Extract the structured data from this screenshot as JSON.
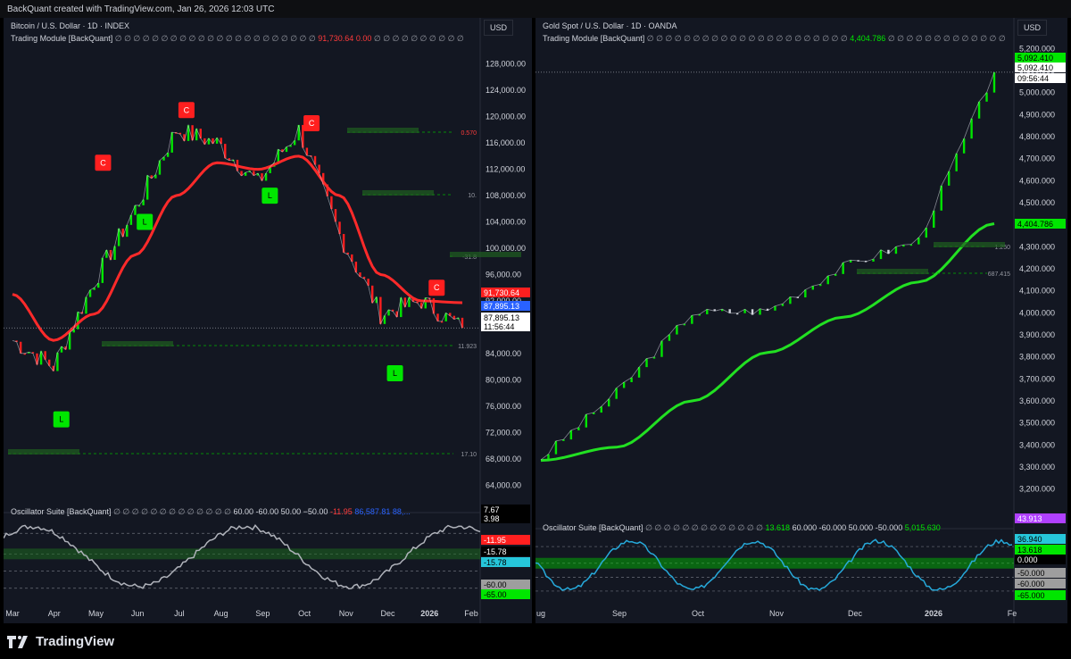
{
  "topbar": {
    "text": "BackQuant created with TradingView.com, Jan 26, 2026 12:03 UTC"
  },
  "footer": {
    "logo_text": "TradingView"
  },
  "left": {
    "title": "Bitcoin / U.S. Dollar · 1D · INDEX",
    "module_label": "Trading Module [BackQuant]",
    "module_values": [
      "91,730.64",
      "0.00"
    ],
    "currency": "USD",
    "osc_label": "Oscillator Suite [BackQuant]",
    "osc_values": [
      "60.00",
      "-60.00",
      "50.00",
      "−50.00",
      "-11.95",
      "86,587.81",
      "88,..."
    ],
    "price_badges": [
      {
        "text": "91,730.64",
        "bg": "#ff1f1f",
        "fg": "#ffffff"
      },
      {
        "text": "87,895.13",
        "bg": "#2962ff",
        "fg": "#ffffff"
      },
      {
        "text": "87,895.13",
        "bg": "#ffffff",
        "fg": "#000000"
      },
      {
        "text": "11:56:44",
        "bg": "#ffffff",
        "fg": "#000000"
      }
    ],
    "zone_labels": [
      "0.570",
      "10.",
      "-31.8",
      "11.923",
      "17.10"
    ],
    "osc_badges": [
      {
        "text": "7.67",
        "bg": "#000000",
        "fg": "#ffffff"
      },
      {
        "text": "3.98",
        "bg": "#000000",
        "fg": "#ffffff"
      },
      {
        "text": "-11.95",
        "bg": "#ff1f1f",
        "fg": "#ffffff"
      },
      {
        "text": "-15.78",
        "bg": "#000000",
        "fg": "#ffffff"
      },
      {
        "text": "-15.78",
        "bg": "#26c6da",
        "fg": "#000000"
      },
      {
        "text": "-60.00",
        "bg": "#9e9e9e",
        "fg": "#000000"
      },
      {
        "text": "-65.00",
        "bg": "#00e600",
        "fg": "#000000"
      }
    ]
  },
  "right": {
    "title": "Gold Spot / U.S. Dollar · 1D · OANDA",
    "module_label": "Trading Module [BackQuant]",
    "module_values": [
      "4,404.786"
    ],
    "currency": "USD",
    "osc_label": "Oscillator Suite [BackQuant]",
    "osc_values": [
      "13.618",
      "60.000",
      "-60.000",
      "50.000",
      "-50.000",
      "5,015.630"
    ],
    "price_badges": [
      {
        "text": "5,092.410",
        "bg": "#00e600",
        "fg": "#000000"
      },
      {
        "text": "5,092.410",
        "bg": "#ffffff",
        "fg": "#000000"
      },
      {
        "text": "09:56:44",
        "bg": "#ffffff",
        "fg": "#000000"
      },
      {
        "text": "4,404.786",
        "bg": "#00e600",
        "fg": "#000000"
      }
    ],
    "zone_labels": [
      "1.250",
      "687.415"
    ],
    "osc_badges": [
      {
        "text": "43.913",
        "bg": "#b040ff",
        "fg": "#ffffff"
      },
      {
        "text": "36.940",
        "bg": "#26c6da",
        "fg": "#000000"
      },
      {
        "text": "13.618",
        "bg": "#00e600",
        "fg": "#000000"
      },
      {
        "text": "0.000",
        "bg": "#000000",
        "fg": "#ffffff"
      },
      {
        "text": "-50.000",
        "bg": "#9e9e9e",
        "fg": "#000000"
      },
      {
        "text": "-60.000",
        "bg": "#9e9e9e",
        "fg": "#000000"
      },
      {
        "text": "-65.000",
        "bg": "#00e600",
        "fg": "#000000"
      }
    ]
  },
  "chart_data": [
    {
      "type": "line",
      "title": "Bitcoin / U.S. Dollar · 1D · INDEX",
      "xlabel": "",
      "ylabel": "USD",
      "ylim": [
        62000,
        130000
      ],
      "y_ticks": [
        "128,000.00",
        "124,000.00",
        "120,000.00",
        "116,000.00",
        "112,000.00",
        "108,000.00",
        "104,000.00",
        "100,000.00",
        "96,000.00",
        "92,000.00",
        "84,000.00",
        "80,000.00",
        "76,000.00",
        "72,000.00",
        "68,000.00",
        "64,000.00"
      ],
      "x_ticks": [
        "Mar",
        "Apr",
        "May",
        "Jun",
        "Jul",
        "Aug",
        "Sep",
        "Oct",
        "Nov",
        "Dec",
        "2026",
        "Feb"
      ],
      "series": [
        {
          "x": [
            "Mar",
            "Apr",
            "May",
            "Jun",
            "Jul",
            "Aug",
            "Sep",
            "Oct",
            "Nov",
            "Dec",
            "2026",
            "Jan 26"
          ],
          "values": [
            86000,
            82000,
            95000,
            106000,
            118000,
            116000,
            110000,
            118000,
            102000,
            90000,
            92000,
            87895.13
          ]
        },
        {
          "x": [
            "Mar",
            "Apr",
            "May",
            "Jun",
            "Jul",
            "Aug",
            "Sep",
            "Oct",
            "Nov",
            "Dec",
            "2026",
            "Jan 26"
          ],
          "values": [
            93000,
            86000,
            90000,
            99000,
            108000,
            113000,
            112000,
            114000,
            108000,
            96000,
            92000,
            91730.64
          ]
        }
      ],
      "signals": [
        {
          "label": "L",
          "x": "Apr",
          "value": 74000
        },
        {
          "label": "C",
          "x": "May",
          "value": 113000
        },
        {
          "label": "L",
          "x": "Jun",
          "value": 104000
        },
        {
          "label": "C",
          "x": "Jul",
          "value": 121000
        },
        {
          "label": "L",
          "x": "Sep",
          "value": 108000
        },
        {
          "label": "C",
          "x": "Oct",
          "value": 119000
        },
        {
          "label": "L",
          "x": "Dec",
          "value": 81000
        },
        {
          "label": "C",
          "x": "2026",
          "value": 94000
        }
      ]
    },
    {
      "type": "line",
      "title": "Gold Spot / U.S. Dollar · 1D · OANDA",
      "xlabel": "",
      "ylabel": "USD",
      "ylim": [
        3150,
        5250
      ],
      "y_ticks": [
        "5,200.000",
        "5,100.000",
        "5,000.000",
        "4,900.000",
        "4,800.000",
        "4,700.000",
        "4,600.000",
        "4,500.000",
        "4,400.000",
        "4,300.000",
        "4,200.000",
        "4,100.000",
        "4,000.000",
        "3,900.000",
        "3,800.000",
        "3,700.000",
        "3,600.000",
        "3,500.000",
        "3,400.000",
        "3,300.000",
        "3,200.000"
      ],
      "x_ticks": [
        "ug",
        "Sep",
        "Oct",
        "Nov",
        "Dec",
        "2026",
        "Fe"
      ],
      "series": [
        {
          "x": [
            "ug",
            "Sep",
            "Oct",
            "Nov",
            "Dec",
            "2026",
            "Jan 26"
          ],
          "values": [
            3340,
            3640,
            4000,
            4010,
            4210,
            4330,
            5092.41
          ]
        },
        {
          "x": [
            "ug",
            "Sep",
            "Oct",
            "Nov",
            "Dec",
            "2026",
            "Jan 26"
          ],
          "values": [
            3330,
            3390,
            3600,
            3820,
            3980,
            4140,
            4404.786
          ]
        }
      ]
    }
  ]
}
